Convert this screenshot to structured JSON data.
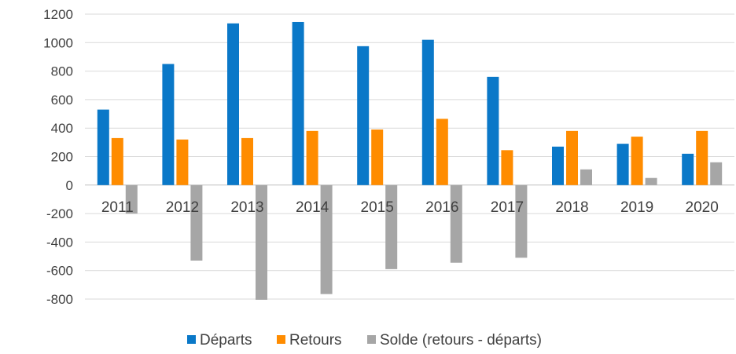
{
  "chart_data": {
    "type": "bar",
    "title": "",
    "xlabel": "",
    "ylabel": "",
    "categories": [
      "2011",
      "2012",
      "2013",
      "2014",
      "2015",
      "2016",
      "2017",
      "2018",
      "2019",
      "2020"
    ],
    "ylim": [
      -800,
      1200
    ],
    "yticks": [
      1200,
      1000,
      800,
      600,
      400,
      200,
      0,
      -200,
      -400,
      -600,
      -800
    ],
    "grid": true,
    "legend_position": "bottom",
    "series": [
      {
        "name": "Départs",
        "color": "#0a78c8",
        "values": [
          530,
          850,
          1135,
          1145,
          975,
          1020,
          760,
          270,
          290,
          220
        ]
      },
      {
        "name": "Retours",
        "color": "#ff8c00",
        "values": [
          330,
          320,
          330,
          380,
          390,
          465,
          245,
          380,
          340,
          380
        ]
      },
      {
        "name": "Solde (retours - départs)",
        "color": "#a6a6a6",
        "values": [
          -200,
          -530,
          -805,
          -765,
          -590,
          -545,
          -510,
          110,
          50,
          160
        ]
      }
    ]
  }
}
